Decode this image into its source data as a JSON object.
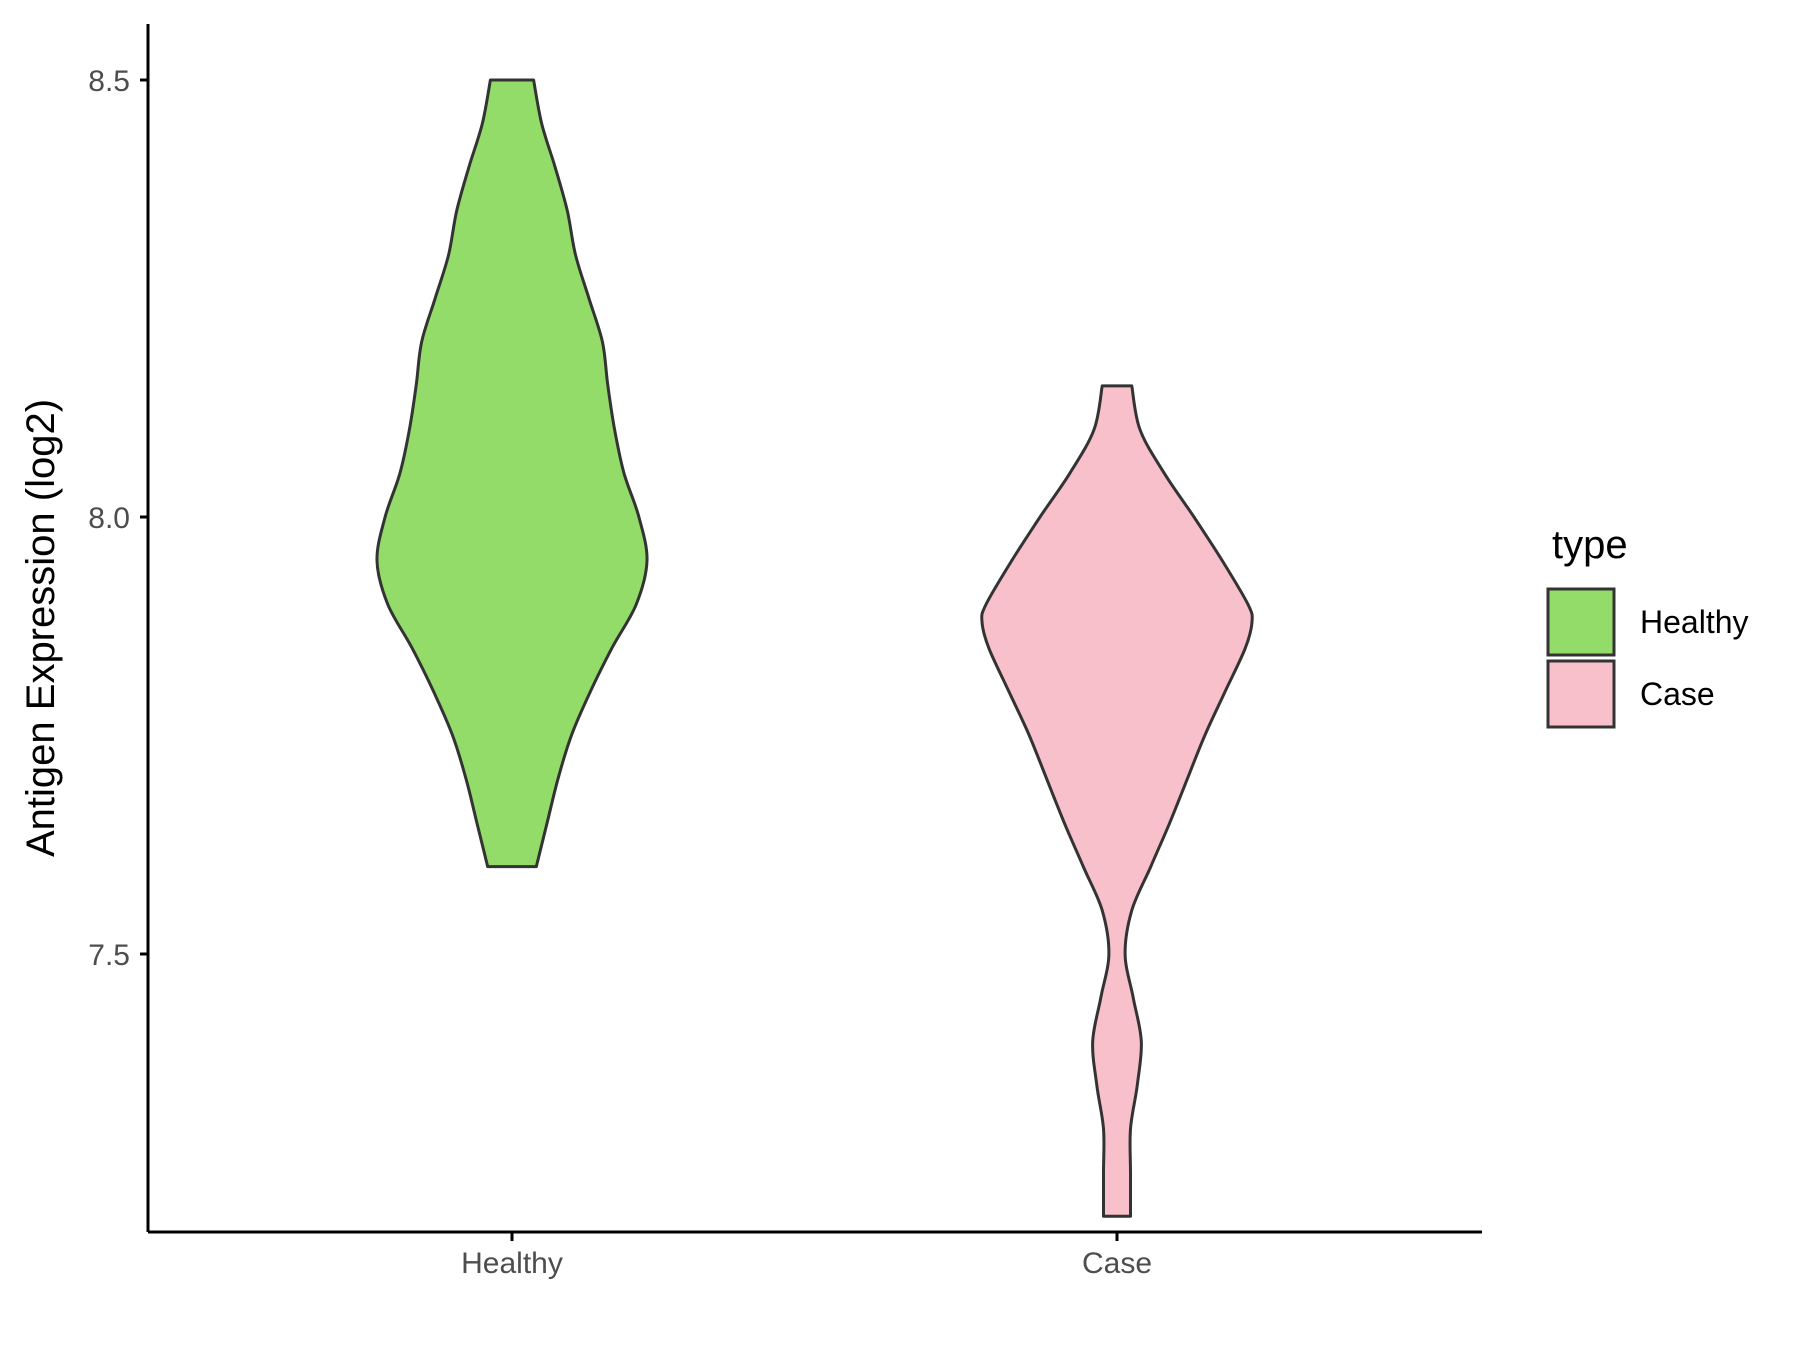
{
  "chart_data": {
    "type": "violin",
    "title": "",
    "xlabel": "",
    "ylabel": "Antigen Expression (log2)",
    "categories": [
      "Healthy",
      "Case"
    ],
    "y_ticks": [
      "7.5",
      "8.0",
      "8.5"
    ],
    "ylim": [
      7.15,
      8.56
    ],
    "grid": false,
    "legend": {
      "title": "type",
      "position": "right",
      "entries": [
        {
          "label": "Healthy",
          "color": "#93dc6a"
        },
        {
          "label": "Case",
          "color": "#f7c0cb"
        }
      ]
    },
    "series": [
      {
        "name": "Healthy",
        "color": "#93dc6a",
        "min": 7.6,
        "max": 8.5,
        "profile": [
          [
            7.6,
            0.18
          ],
          [
            7.65,
            0.26
          ],
          [
            7.7,
            0.34
          ],
          [
            7.75,
            0.44
          ],
          [
            7.8,
            0.58
          ],
          [
            7.85,
            0.74
          ],
          [
            7.9,
            0.92
          ],
          [
            7.95,
            1.0
          ],
          [
            8.0,
            0.94
          ],
          [
            8.05,
            0.83
          ],
          [
            8.1,
            0.76
          ],
          [
            8.15,
            0.71
          ],
          [
            8.2,
            0.67
          ],
          [
            8.25,
            0.57
          ],
          [
            8.3,
            0.47
          ],
          [
            8.35,
            0.41
          ],
          [
            8.4,
            0.32
          ],
          [
            8.45,
            0.22
          ],
          [
            8.5,
            0.16
          ]
        ]
      },
      {
        "name": "Case",
        "color": "#f7c0cb",
        "min": 7.2,
        "max": 8.15,
        "profile": [
          [
            7.2,
            0.1
          ],
          [
            7.25,
            0.1
          ],
          [
            7.3,
            0.1
          ],
          [
            7.35,
            0.15
          ],
          [
            7.4,
            0.18
          ],
          [
            7.45,
            0.12
          ],
          [
            7.5,
            0.06
          ],
          [
            7.55,
            0.11
          ],
          [
            7.6,
            0.25
          ],
          [
            7.65,
            0.39
          ],
          [
            7.7,
            0.52
          ],
          [
            7.75,
            0.65
          ],
          [
            7.8,
            0.8
          ],
          [
            7.85,
            0.95
          ],
          [
            7.88,
            1.0
          ],
          [
            7.9,
            0.97
          ],
          [
            7.95,
            0.78
          ],
          [
            8.0,
            0.57
          ],
          [
            8.05,
            0.35
          ],
          [
            8.1,
            0.17
          ],
          [
            8.15,
            0.11
          ]
        ]
      }
    ]
  }
}
